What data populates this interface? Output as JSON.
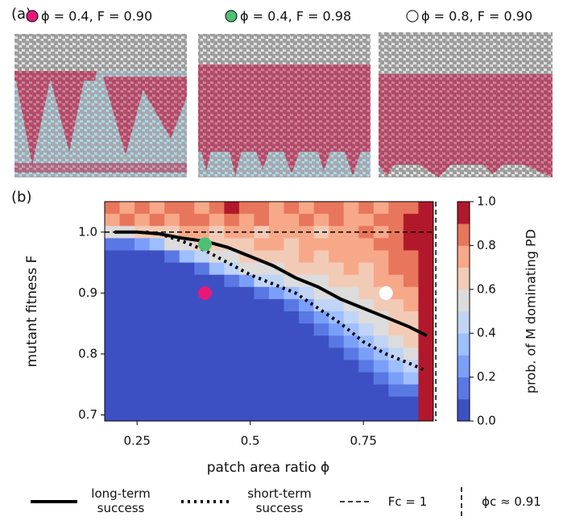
{
  "panel_a": {
    "label": "(a)",
    "images": [
      {
        "label": "ϕ = 0.4, F = 0.90",
        "marker_color": "#e8177a"
      },
      {
        "label": "ϕ = 0.4, F = 0.98",
        "marker_color": "#4fbf73"
      },
      {
        "label": "ϕ = 0.8, F = 0.90",
        "marker_color": "#ffffff"
      }
    ]
  },
  "chart_data": {
    "type": "heatmap",
    "panel_label": "(b)",
    "x_label": "patch area ratio ϕ",
    "y_label": "mutant fitness F",
    "colorbar_label": "prob. of M dominating PD",
    "xlim": [
      0.1785,
      0.9045
    ],
    "ylim": [
      0.69,
      1.05
    ],
    "clim": [
      0,
      1
    ],
    "xticks": [
      0.25,
      0.5,
      0.75
    ],
    "yticks": [
      0.7,
      0.8,
      0.9,
      {
        "value": 1,
        "label": "1.0"
      }
    ],
    "cticks": [
      {
        "value": 0,
        "label": "0.0"
      },
      0.2,
      0.4,
      0.6,
      0.8,
      {
        "value": 1,
        "label": "1.0"
      }
    ],
    "colors": [
      "#3d50c3",
      "#5a78e4",
      "#7b9ff9",
      "#9ebeff",
      "#c0d4f5",
      "#dddcdc",
      "#f2cbb7",
      "#f7a889",
      "#e8765c",
      "#b2182b"
    ],
    "x": [
      0.195,
      0.228,
      0.261,
      0.294,
      0.327,
      0.36,
      0.393,
      0.426,
      0.459,
      0.492,
      0.525,
      0.558,
      0.591,
      0.624,
      0.657,
      0.69,
      0.723,
      0.756,
      0.789,
      0.822,
      0.855,
      0.888
    ],
    "y": [
      1.04,
      1.02,
      1.0,
      0.98,
      0.96,
      0.94,
      0.92,
      0.9,
      0.88,
      0.86,
      0.84,
      0.82,
      0.8,
      0.78,
      0.76,
      0.74,
      0.72,
      0.7
    ],
    "z": [
      [
        0.8,
        0.7,
        0.8,
        0.7,
        0.8,
        0.8,
        0.7,
        0.8,
        0.9,
        0.8,
        0.8,
        0.7,
        0.8,
        0.7,
        0.8,
        0.8,
        0.7,
        0.8,
        0.7,
        0.8,
        0.8,
        1.0
      ],
      [
        0.7,
        0.8,
        0.7,
        0.8,
        0.7,
        0.8,
        0.8,
        0.7,
        0.8,
        0.7,
        0.8,
        0.7,
        0.7,
        0.8,
        0.7,
        0.8,
        0.7,
        0.7,
        0.8,
        0.8,
        0.9,
        1.0
      ],
      [
        0.5,
        0.5,
        0.6,
        0.6,
        0.6,
        0.7,
        0.7,
        0.6,
        0.7,
        0.7,
        0.6,
        0.7,
        0.7,
        0.7,
        0.6,
        0.7,
        0.7,
        0.8,
        0.7,
        0.8,
        0.9,
        1.0
      ],
      [
        0.1,
        0.1,
        0.2,
        0.3,
        0.5,
        0.5,
        0.6,
        0.6,
        0.6,
        0.6,
        0.7,
        0.7,
        0.6,
        0.7,
        0.7,
        0.7,
        0.7,
        0.7,
        0.8,
        0.8,
        0.9,
        1.0
      ],
      [
        0,
        0,
        0,
        0,
        0.1,
        0.3,
        0.4,
        0.5,
        0.5,
        0.6,
        0.6,
        0.6,
        0.6,
        0.7,
        0.6,
        0.7,
        0.7,
        0.7,
        0.7,
        0.8,
        0.8,
        1.0
      ],
      [
        0,
        0,
        0,
        0,
        0,
        0,
        0.1,
        0.3,
        0.4,
        0.5,
        0.5,
        0.5,
        0.6,
        0.6,
        0.6,
        0.6,
        0.7,
        0.6,
        0.7,
        0.8,
        0.8,
        1.0
      ],
      [
        0,
        0,
        0,
        0,
        0,
        0,
        0,
        0,
        0.1,
        0.2,
        0.4,
        0.4,
        0.5,
        0.5,
        0.5,
        0.6,
        0.6,
        0.6,
        0.7,
        0.7,
        0.8,
        1.0
      ],
      [
        0,
        0,
        0,
        0,
        0,
        0,
        0,
        0,
        0,
        0,
        0.1,
        0.2,
        0.3,
        0.4,
        0.5,
        0.5,
        0.5,
        0.6,
        0.6,
        0.7,
        0.7,
        1.0
      ],
      [
        0,
        0,
        0,
        0,
        0,
        0,
        0,
        0,
        0,
        0,
        0,
        0,
        0.1,
        0.2,
        0.4,
        0.4,
        0.5,
        0.5,
        0.6,
        0.6,
        0.7,
        1.0
      ],
      [
        0,
        0,
        0,
        0,
        0,
        0,
        0,
        0,
        0,
        0,
        0,
        0,
        0,
        0.1,
        0.2,
        0.3,
        0.4,
        0.5,
        0.5,
        0.6,
        0.6,
        1.0
      ],
      [
        0,
        0,
        0,
        0,
        0,
        0,
        0,
        0,
        0,
        0,
        0,
        0,
        0,
        0,
        0.1,
        0.2,
        0.3,
        0.4,
        0.5,
        0.6,
        0.6,
        1.0
      ],
      [
        0,
        0,
        0,
        0,
        0,
        0,
        0,
        0,
        0,
        0,
        0,
        0,
        0,
        0,
        0,
        0.1,
        0.2,
        0.3,
        0.4,
        0.5,
        0.6,
        1.0
      ],
      [
        0,
        0,
        0,
        0,
        0,
        0,
        0,
        0,
        0,
        0,
        0,
        0,
        0,
        0,
        0,
        0,
        0.1,
        0.2,
        0.3,
        0.4,
        0.5,
        1.0
      ],
      [
        0,
        0,
        0,
        0,
        0,
        0,
        0,
        0,
        0,
        0,
        0,
        0,
        0,
        0,
        0,
        0,
        0,
        0.1,
        0.2,
        0.3,
        0.4,
        1.0
      ],
      [
        0,
        0,
        0,
        0,
        0,
        0,
        0,
        0,
        0,
        0,
        0,
        0,
        0,
        0,
        0,
        0,
        0,
        0,
        0.1,
        0.2,
        0.3,
        1.0
      ],
      [
        0,
        0,
        0,
        0,
        0,
        0,
        0,
        0,
        0,
        0,
        0,
        0,
        0,
        0,
        0,
        0,
        0,
        0,
        0,
        0.1,
        0.1,
        1.0
      ],
      [
        0,
        0,
        0,
        0,
        0,
        0,
        0,
        0,
        0,
        0,
        0,
        0,
        0,
        0,
        0,
        0,
        0,
        0,
        0,
        0,
        0,
        1.0
      ],
      [
        0,
        0,
        0,
        0,
        0,
        0,
        0,
        0,
        0,
        0,
        0,
        0,
        0,
        0,
        0,
        0,
        0,
        0,
        0,
        0,
        0,
        1.0
      ]
    ],
    "curves": [
      {
        "name": "long-term success",
        "style": "solid",
        "x": [
          0.2,
          0.25,
          0.3,
          0.35,
          0.4,
          0.45,
          0.5,
          0.55,
          0.6,
          0.65,
          0.7,
          0.75,
          0.8,
          0.85,
          0.89
        ],
        "y": [
          1.0,
          1.0,
          0.997,
          0.99,
          0.985,
          0.975,
          0.96,
          0.945,
          0.925,
          0.91,
          0.89,
          0.875,
          0.86,
          0.845,
          0.83
        ]
      },
      {
        "name": "short-term success",
        "style": "dotted",
        "x": [
          0.27,
          0.3,
          0.35,
          0.4,
          0.45,
          0.5,
          0.55,
          0.6,
          0.65,
          0.7,
          0.75,
          0.8,
          0.85,
          0.89
        ],
        "y": [
          1.0,
          0.997,
          0.985,
          0.97,
          0.95,
          0.93,
          0.915,
          0.9,
          0.875,
          0.85,
          0.82,
          0.8,
          0.785,
          0.772
        ]
      }
    ],
    "hline": {
      "name": "Fc = 1",
      "value": 1
    },
    "vline": {
      "name": "ϕc ≈ 0.91",
      "value": 0.91
    },
    "points": {
      "x": [
        0.4,
        0.4,
        0.8
      ],
      "y": [
        0.9,
        0.98,
        0.9
      ],
      "colors": [
        "#e8177a",
        "#4fbf73",
        "#ffffff"
      ]
    }
  }
}
